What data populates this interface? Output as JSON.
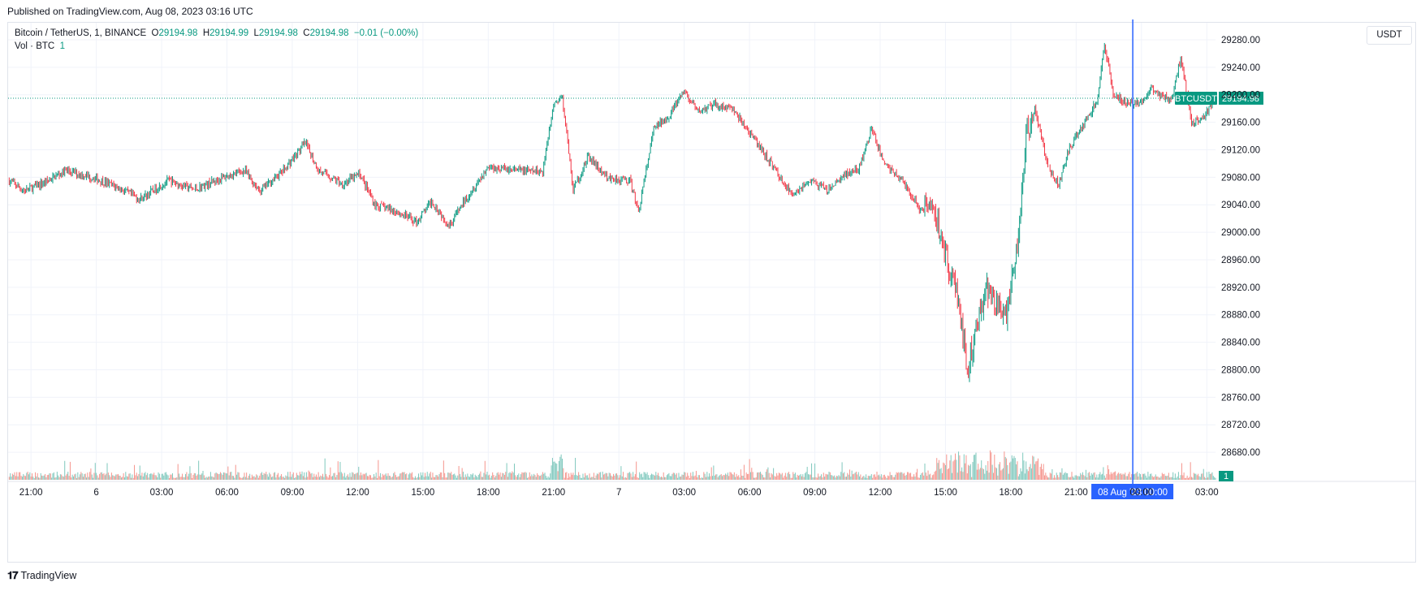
{
  "header": {
    "published": "Published on TradingView.com, Aug 08, 2023 03:16 UTC"
  },
  "legend": {
    "symbol": "Bitcoin / TetherUS, 1, BINANCE",
    "o_label": "O",
    "o_value": "29194.98",
    "h_label": "H",
    "h_value": "29194.99",
    "l_label": "L",
    "l_value": "29194.98",
    "c_label": "C",
    "c_value": "29194.98",
    "change": "−0.01 (−0.00%)",
    "vol_label": "Vol · BTC",
    "vol_value": "1"
  },
  "currency_label": "USDT",
  "footer": {
    "logo_text": "TradingView"
  },
  "colors": {
    "up": "#089981",
    "down": "#f23645",
    "vol_up": "#7fc8bd",
    "vol_down": "#f5958d",
    "crosshair": "#2962ff",
    "grid": "#f0f3fa"
  },
  "chart_data": {
    "type": "candlestick",
    "title": "Bitcoin / TetherUS, 1, BINANCE",
    "interval": "1 minute",
    "ylim": [
      28640,
      29300
    ],
    "y_ticks": [
      28680,
      28720,
      28760,
      28800,
      28840,
      28880,
      28920,
      28960,
      29000,
      29040,
      29080,
      29120,
      29160,
      29200,
      29240,
      29280
    ],
    "y_tick_labels": [
      "28680.00",
      "28720.00",
      "28760.00",
      "28800.00",
      "28840.00",
      "28880.00",
      "28920.00",
      "28960.00",
      "29000.00",
      "29040.00",
      "29080.00",
      "29120.00",
      "29160.00",
      "29200.00",
      "29240.00",
      "29280.00"
    ],
    "x_ticks": [
      {
        "hours": 0,
        "label": "21:00"
      },
      {
        "hours": 3,
        "label": "6"
      },
      {
        "hours": 6,
        "label": "03:00"
      },
      {
        "hours": 9,
        "label": "06:00"
      },
      {
        "hours": 12,
        "label": "09:00"
      },
      {
        "hours": 15,
        "label": "12:00"
      },
      {
        "hours": 18,
        "label": "15:00"
      },
      {
        "hours": 21,
        "label": "18:00"
      },
      {
        "hours": 24,
        "label": "21:00"
      },
      {
        "hours": 27,
        "label": "7"
      },
      {
        "hours": 30,
        "label": "03:00"
      },
      {
        "hours": 33,
        "label": "06:00"
      },
      {
        "hours": 36,
        "label": "09:00"
      },
      {
        "hours": 39,
        "label": "12:00"
      },
      {
        "hours": 42,
        "label": "15:00"
      },
      {
        "hours": 45,
        "label": "18:00"
      },
      {
        "hours": 48,
        "label": "21:00"
      },
      {
        "hours": 51,
        "label": "00:00"
      },
      {
        "hours": 54,
        "label": "03:00"
      }
    ],
    "x_range_hours": [
      -1.05,
      54.4
    ],
    "price_path": [
      [
        -1.0,
        29075
      ],
      [
        -0.3,
        29060
      ],
      [
        0.6,
        29072
      ],
      [
        1.6,
        29090
      ],
      [
        2.8,
        29080
      ],
      [
        4.0,
        29065
      ],
      [
        5.0,
        29048
      ],
      [
        6.3,
        29075
      ],
      [
        7.5,
        29062
      ],
      [
        8.7,
        29078
      ],
      [
        9.8,
        29090
      ],
      [
        10.5,
        29060
      ],
      [
        11.6,
        29090
      ],
      [
        12.6,
        29130
      ],
      [
        13.2,
        29090
      ],
      [
        14.3,
        29070
      ],
      [
        15.1,
        29085
      ],
      [
        15.8,
        29040
      ],
      [
        16.8,
        29030
      ],
      [
        17.7,
        29015
      ],
      [
        18.4,
        29045
      ],
      [
        19.2,
        29010
      ],
      [
        20.0,
        29050
      ],
      [
        21.0,
        29095
      ],
      [
        22.3,
        29090
      ],
      [
        23.5,
        29088
      ],
      [
        24.0,
        29190
      ],
      [
        24.4,
        29195
      ],
      [
        24.9,
        29060
      ],
      [
        25.6,
        29110
      ],
      [
        26.4,
        29080
      ],
      [
        27.5,
        29075
      ],
      [
        27.9,
        29030
      ],
      [
        28.6,
        29150
      ],
      [
        29.3,
        29170
      ],
      [
        30.0,
        29205
      ],
      [
        30.6,
        29175
      ],
      [
        31.4,
        29185
      ],
      [
        32.2,
        29180
      ],
      [
        33.1,
        29140
      ],
      [
        34.1,
        29095
      ],
      [
        34.9,
        29055
      ],
      [
        35.8,
        29075
      ],
      [
        36.6,
        29060
      ],
      [
        37.4,
        29085
      ],
      [
        38.0,
        29090
      ],
      [
        38.6,
        29150
      ],
      [
        39.2,
        29100
      ],
      [
        40.0,
        29075
      ],
      [
        40.9,
        29030
      ],
      [
        41.3,
        29050
      ],
      [
        41.8,
        28995
      ],
      [
        42.2,
        28940
      ],
      [
        42.6,
        28900
      ],
      [
        43.0,
        28800
      ],
      [
        43.4,
        28860
      ],
      [
        43.9,
        28920
      ],
      [
        44.4,
        28890
      ],
      [
        44.8,
        28880
      ],
      [
        45.3,
        28980
      ],
      [
        45.7,
        29140
      ],
      [
        46.1,
        29180
      ],
      [
        46.7,
        29095
      ],
      [
        47.2,
        29070
      ],
      [
        47.6,
        29115
      ],
      [
        48.1,
        29145
      ],
      [
        48.7,
        29175
      ],
      [
        49.0,
        29195
      ],
      [
        49.3,
        29275
      ],
      [
        49.7,
        29200
      ],
      [
        50.5,
        29185
      ],
      [
        51.2,
        29195
      ],
      [
        51.5,
        29210
      ],
      [
        51.8,
        29200
      ],
      [
        52.4,
        29195
      ],
      [
        52.8,
        29255
      ],
      [
        53.3,
        29160
      ],
      [
        53.9,
        29170
      ],
      [
        54.4,
        29195
      ]
    ],
    "last_price": 29194.98,
    "last_price_label": "29194.98",
    "symbol_tag": "BTCUSDT",
    "crosshair": {
      "hours": 50.6,
      "label": "08 Aug '23   00:00"
    },
    "volume": {
      "last": 1,
      "last_label": "1"
    }
  }
}
